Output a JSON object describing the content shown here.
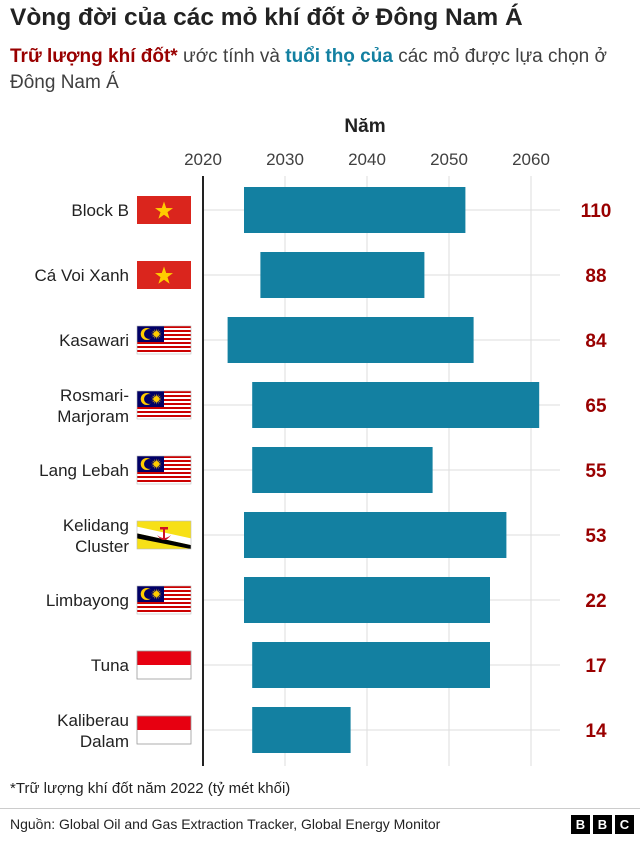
{
  "title": "Vòng đời của các mỏ khí đốt ở Đông Nam Á",
  "subtitle": {
    "highlight_reserves": "Trữ lượng khí đốt*",
    "part1": " ước tính và ",
    "highlight_lifespan": "tuổi thọ của",
    "part2": " các mỏ được lựa chọn ở Đông Nam Á"
  },
  "footnote": "*Trữ lượng khí đốt năm 2022 (tỷ mét khối)",
  "source": "Nguồn: Global Oil and Gas Extraction Tracker, Global Energy Monitor",
  "logo": [
    "B",
    "B",
    "C"
  ],
  "colors": {
    "bar": "#1380A1",
    "reserve_value": "#990000",
    "grid": "#dddddd",
    "axis": "#222222"
  },
  "chart_data": {
    "type": "bar",
    "orientation": "horizontal-range",
    "title": "Vòng đời của các mỏ khí đốt ở Đông Nam Á",
    "xlabel": "Năm",
    "x_ticks": [
      2020,
      2030,
      2040,
      2050,
      2060
    ],
    "xlim": [
      2020,
      2063
    ],
    "grid": true,
    "categories": [
      {
        "name": "Block B",
        "lines": [
          "Block B"
        ],
        "flag": "vietnam",
        "start": 2025,
        "end": 2052,
        "reserves": "110"
      },
      {
        "name": "Cá Voi Xanh",
        "lines": [
          "Cá Voi Xanh"
        ],
        "flag": "vietnam",
        "start": 2027,
        "end": 2047,
        "reserves": "88"
      },
      {
        "name": "Kasawari",
        "lines": [
          "Kasawari"
        ],
        "flag": "malaysia",
        "start": 2023,
        "end": 2053,
        "reserves": "84"
      },
      {
        "name": "Rosmari-Marjoram",
        "lines": [
          "Rosmari-",
          "Marjoram"
        ],
        "flag": "malaysia",
        "start": 2026,
        "end": 2061,
        "reserves": "65"
      },
      {
        "name": "Lang Lebah",
        "lines": [
          "Lang Lebah"
        ],
        "flag": "malaysia",
        "start": 2026,
        "end": 2048,
        "reserves": "55"
      },
      {
        "name": "Kelidang Cluster",
        "lines": [
          "Kelidang",
          "Cluster"
        ],
        "flag": "brunei",
        "start": 2025,
        "end": 2057,
        "reserves": "53"
      },
      {
        "name": "Limbayong",
        "lines": [
          "Limbayong"
        ],
        "flag": "malaysia",
        "start": 2025,
        "end": 2055,
        "reserves": "22"
      },
      {
        "name": "Tuna",
        "lines": [
          "Tuna"
        ],
        "flag": "indonesia",
        "start": 2026,
        "end": 2055,
        "reserves": "17"
      },
      {
        "name": "Kaliberau Dalam",
        "lines": [
          "Kaliberau",
          "Dalam"
        ],
        "flag": "indonesia",
        "start": 2026,
        "end": 2038,
        "reserves": "14"
      }
    ]
  }
}
